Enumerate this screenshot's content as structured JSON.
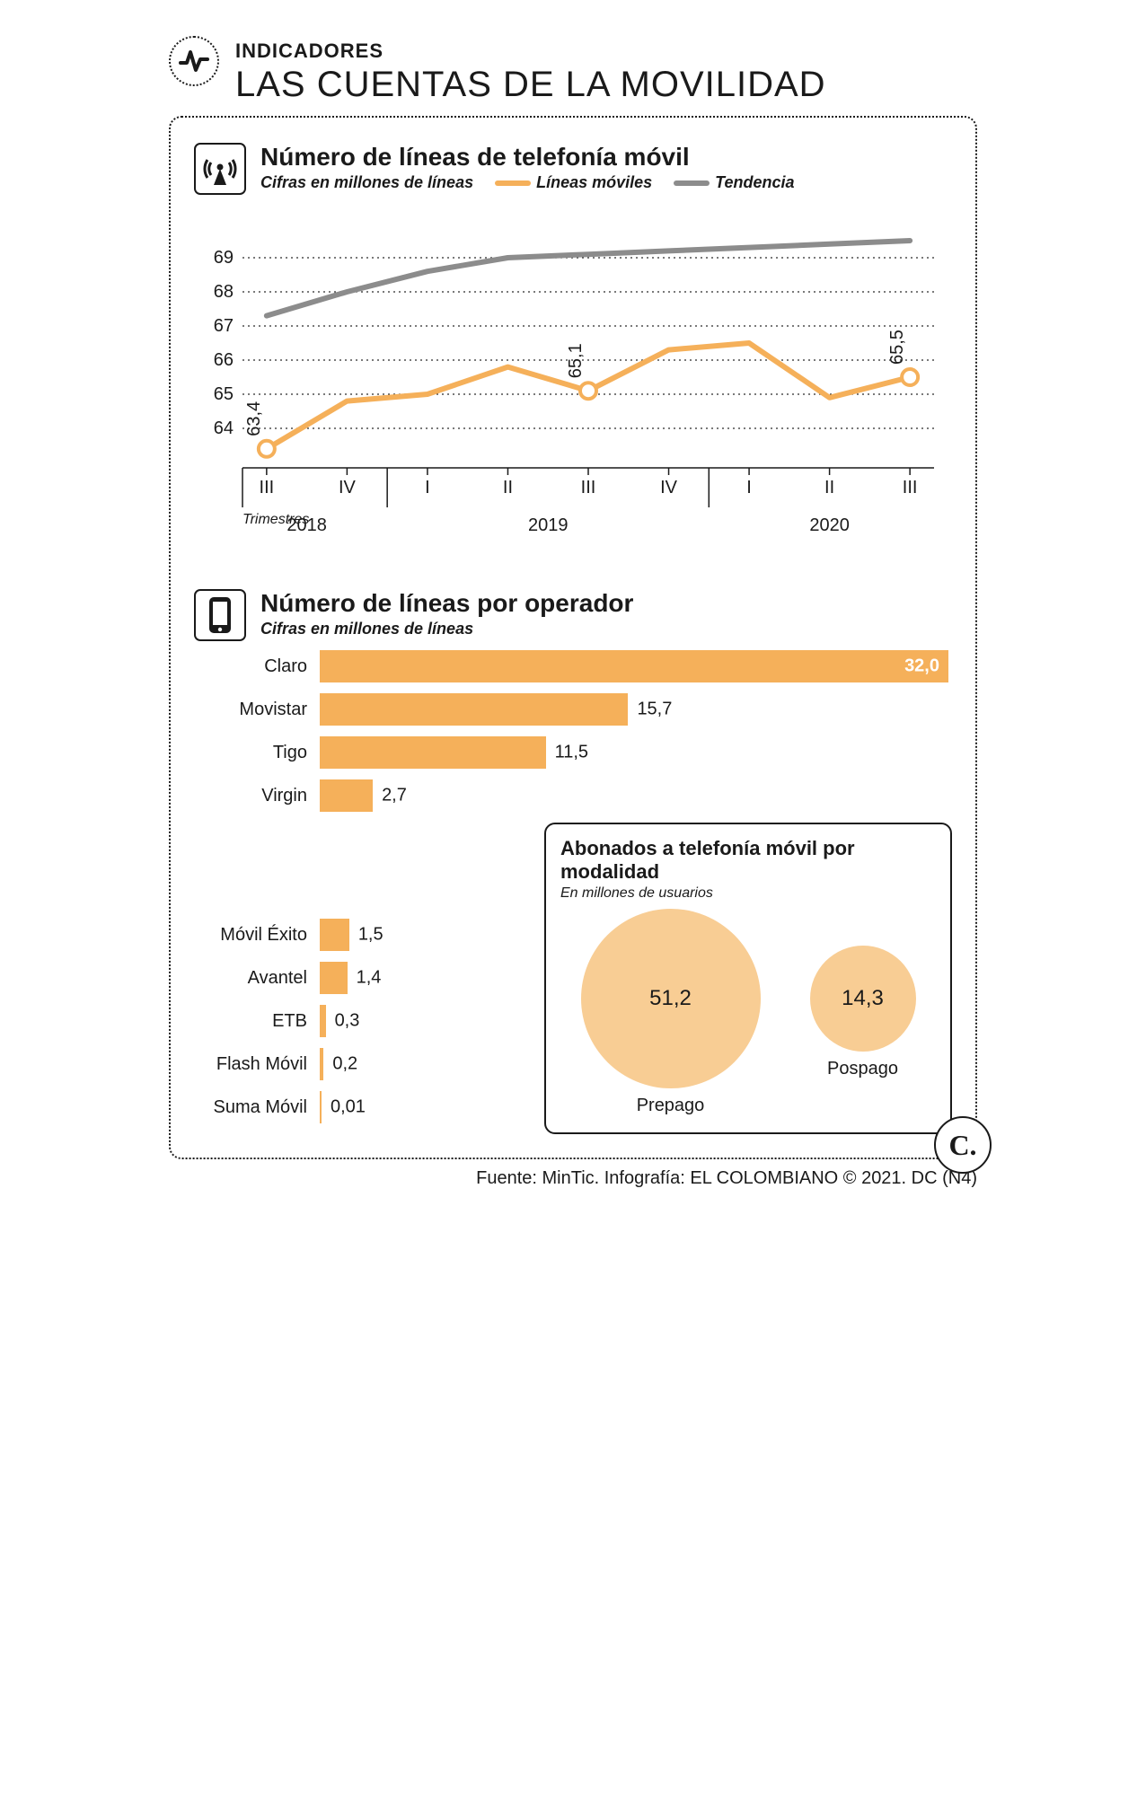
{
  "colors": {
    "orange": "#f5b05a",
    "orange_light": "#f8cd94",
    "gray": "#8c8c8c",
    "text": "#1a1a1a",
    "grid": "#2b2b2b",
    "white": "#ffffff"
  },
  "header": {
    "section_label": "INDICADORES",
    "title": "LAS CUENTAS DE LA MOVILIDAD"
  },
  "line_chart": {
    "title": "Número de líneas de telefonía móvil",
    "subtitle": "Cifras en millones de líneas",
    "legend": {
      "series1": "Líneas móviles",
      "series2": "Tendencia"
    },
    "y_ticks": [
      64,
      65,
      66,
      67,
      68,
      69
    ],
    "ylim": [
      63,
      70
    ],
    "x_labels": [
      "III",
      "IV",
      "I",
      "II",
      "III",
      "IV",
      "I",
      "II",
      "III"
    ],
    "trimestres_label": "Trimestres",
    "year_groups": [
      {
        "label": "2018",
        "span": [
          0,
          1
        ]
      },
      {
        "label": "2019",
        "span": [
          2,
          5
        ]
      },
      {
        "label": "2020",
        "span": [
          6,
          8
        ]
      }
    ],
    "series_mobiles": [
      63.4,
      64.8,
      65.0,
      65.8,
      65.1,
      66.3,
      66.5,
      64.9,
      65.5
    ],
    "series_tendencia": [
      67.3,
      68.0,
      68.6,
      69.0,
      69.1,
      69.2,
      69.3,
      69.4,
      69.5
    ],
    "markers": [
      {
        "index": 0,
        "label": "63,4"
      },
      {
        "index": 4,
        "label": "65,1"
      },
      {
        "index": 8,
        "label": "65,5"
      }
    ],
    "line_width": 6,
    "marker_radius": 9,
    "grid_dash": "2,4"
  },
  "bar_chart": {
    "title": "Número de líneas por operador",
    "subtitle": "Cifras en millones de líneas",
    "max": 32.0,
    "bars": [
      {
        "label": "Claro",
        "value": 32.0,
        "display": "32,0",
        "inside": true
      },
      {
        "label": "Movistar",
        "value": 15.7,
        "display": "15,7",
        "inside": false
      },
      {
        "label": "Tigo",
        "value": 11.5,
        "display": "11,5",
        "inside": false
      },
      {
        "label": "Virgin",
        "value": 2.7,
        "display": "2,7",
        "inside": false
      },
      {
        "label": "Móvil Éxito",
        "value": 1.5,
        "display": "1,5",
        "inside": false
      },
      {
        "label": "Avantel",
        "value": 1.4,
        "display": "1,4",
        "inside": false
      },
      {
        "label": "ETB",
        "value": 0.3,
        "display": "0,3",
        "inside": false
      },
      {
        "label": "Flash Móvil",
        "value": 0.2,
        "display": "0,2",
        "inside": false
      },
      {
        "label": "Suma Móvil",
        "value": 0.01,
        "display": "0,01",
        "inside": false
      }
    ],
    "bar_color": "#f5b05a"
  },
  "inset": {
    "title": "Abonados a telefonía móvil por modalidad",
    "subtitle": "En millones de usuarios",
    "bubbles": [
      {
        "label": "Prepago",
        "value": 51.2,
        "display": "51,2",
        "diameter": 200
      },
      {
        "label": "Pospago",
        "value": 14.3,
        "display": "14,3",
        "diameter": 118
      }
    ],
    "bubble_color": "#f8cd94"
  },
  "brand": "C.",
  "source": "Fuente: MinTic. Infografía: EL COLOMBIANO © 2021. DC (N4)"
}
